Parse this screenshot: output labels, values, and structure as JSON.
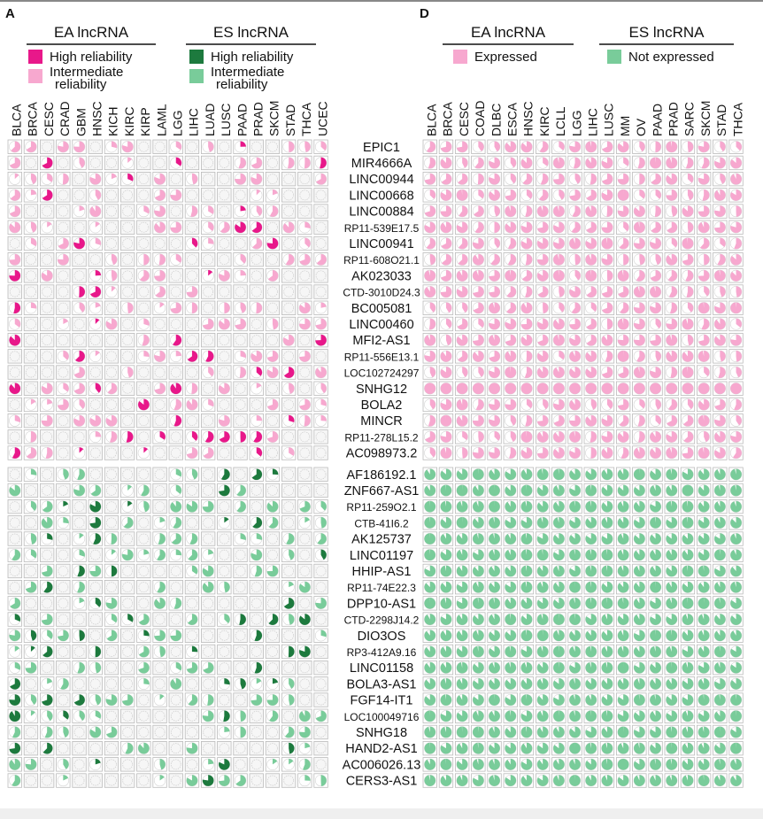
{
  "chart_data": [
    {
      "type": "heatmap",
      "panel_label": "A",
      "groups": [
        {
          "title": "EA lncRNA",
          "legend": [
            {
              "label": "High reliability",
              "color": "#e8188a"
            },
            {
              "label": "Intermediate reliability",
              "color": "#f7a8cf"
            }
          ]
        },
        {
          "title": "ES lncRNA",
          "legend": [
            {
              "label": "High reliability",
              "color": "#1d7a3e"
            },
            {
              "label": "Intermediate reliability",
              "color": "#79cc9a"
            }
          ]
        }
      ],
      "columns": [
        "BLCA",
        "BRCA",
        "CESC",
        "CRAD",
        "GBM",
        "HNSC",
        "KICH",
        "KIRC",
        "KIRP",
        "LAML",
        "LGG",
        "LIHC",
        "LUAD",
        "LUSC",
        "PAAD",
        "PRAD",
        "SKCM",
        "STAD",
        "THCA",
        "UCEC"
      ],
      "rows_ea": [
        "EPIC1",
        "MIR4666A",
        "LINC00944",
        "LINC00668",
        "LINC00884",
        "RP11-539E17.5",
        "LINC00941",
        "RP11-608O21.1",
        "AK023033",
        "CTD-3010D24.3",
        "BC005081",
        "LINC00460",
        "MFI2-AS1",
        "RP11-556E13.1",
        "LOC102724297",
        "SNHG12",
        "BOLA2",
        "MINCR",
        "RP11-278L15.2",
        "AC098973.2"
      ],
      "rows_es": [
        "AF186192.1",
        "ZNF667-AS1",
        "RP11-259O2.1",
        "CTB-41I6.2",
        "AK125737",
        "LINC01197",
        "HHIP-AS1",
        "RP11-74E22.3",
        "DPP10-AS1",
        "CTD-2298J14.2",
        "DIO3OS",
        "RP3-412A9.16",
        "LINC01158",
        "BOLA3-AS1",
        "FGF14-IT1",
        "LOC100049716",
        "SNHG18",
        "HAND2-AS1",
        "AC006026.13",
        "CERS3-AS1"
      ],
      "values_note": "proportion of samples per lncRNA/cancer shown as pie fill; gray square = no significant association"
    },
    {
      "type": "heatmap",
      "panel_label": "D",
      "groups": [
        {
          "title": "EA lncRNA",
          "legend": [
            {
              "label": "Expressed",
              "color": "#f7a8cf"
            }
          ]
        },
        {
          "title": "ES lncRNA",
          "legend": [
            {
              "label": "Not expressed",
              "color": "#79cc9a"
            }
          ]
        }
      ],
      "columns": [
        "BLCA",
        "BRCA",
        "CESC",
        "COAD",
        "DLBC",
        "ESCA",
        "HNSC",
        "KIRC",
        "LCLL",
        "LGG",
        "LIHC",
        "LUSC",
        "MM",
        "OV",
        "PAAD",
        "PRAD",
        "SARC",
        "SKCM",
        "STAD",
        "THCA"
      ]
    }
  ]
}
